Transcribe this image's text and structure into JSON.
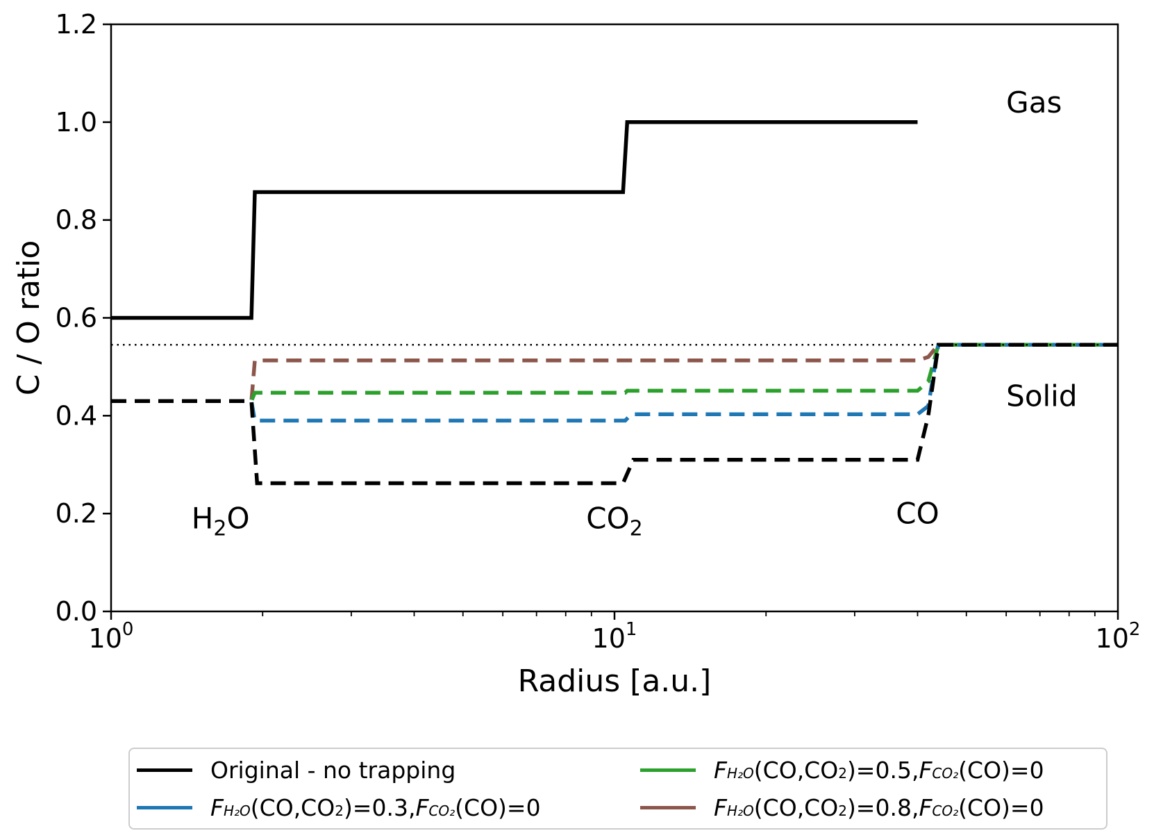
{
  "chart_data": {
    "type": "line",
    "xscale": "log",
    "xlim": [
      1,
      100
    ],
    "ylim": [
      0.0,
      1.2
    ],
    "xlabel": "Radius [a.u.]",
    "ylabel": "C / O ratio",
    "xticks": [
      {
        "value": 1,
        "base": "10",
        "exp": "0"
      },
      {
        "value": 10,
        "base": "10",
        "exp": "1"
      },
      {
        "value": 100,
        "base": "10",
        "exp": "2"
      }
    ],
    "yticks": [
      "0.0",
      "0.2",
      "0.4",
      "0.6",
      "0.8",
      "1.0",
      "1.2"
    ],
    "grid": false,
    "legend_position": "below",
    "annotations": [
      {
        "id": "gas",
        "text": "Gas",
        "x": 60,
        "y": 1.02
      },
      {
        "id": "solid",
        "text": "Solid",
        "x": 60,
        "y": 0.42
      },
      {
        "id": "h2o",
        "base": "H",
        "sub": "2",
        "tail": "O",
        "x": 1.65,
        "y": 0.17
      },
      {
        "id": "co2",
        "base": "CO",
        "sub": "2",
        "tail": "",
        "x": 10.0,
        "y": 0.17
      },
      {
        "id": "co",
        "base": "CO",
        "sub": "",
        "tail": "",
        "x": 40.0,
        "y": 0.18
      }
    ],
    "reference_line": {
      "y": 0.545,
      "style": "dotted",
      "color": "#000000"
    },
    "series": [
      {
        "key": "solid_brown",
        "color": "#8c564b",
        "style": "dashed",
        "x": [
          1,
          1.9,
          1.93,
          10.5,
          10.6,
          40,
          42,
          44,
          100
        ],
        "y": [
          0.43,
          0.43,
          0.513,
          0.513,
          0.513,
          0.513,
          0.52,
          0.545,
          0.545
        ]
      },
      {
        "key": "solid_green",
        "color": "#2ca02c",
        "style": "dashed",
        "x": [
          1,
          1.9,
          1.93,
          10.5,
          10.6,
          40,
          42,
          44,
          100
        ],
        "y": [
          0.43,
          0.43,
          0.447,
          0.447,
          0.451,
          0.451,
          0.47,
          0.545,
          0.545
        ]
      },
      {
        "key": "solid_blue",
        "color": "#1f77b4",
        "style": "dashed",
        "x": [
          1,
          1.9,
          1.93,
          10.5,
          10.8,
          40,
          42,
          44,
          100
        ],
        "y": [
          0.43,
          0.43,
          0.39,
          0.39,
          0.403,
          0.403,
          0.42,
          0.545,
          0.545
        ]
      },
      {
        "key": "solid_original",
        "color": "#000000",
        "style": "dashed",
        "x": [
          1,
          1.9,
          1.95,
          10.4,
          10.9,
          40,
          42,
          44,
          100
        ],
        "y": [
          0.43,
          0.43,
          0.262,
          0.262,
          0.31,
          0.31,
          0.4,
          0.545,
          0.545
        ]
      },
      {
        "key": "gas_original",
        "color": "#000000",
        "style": "solid",
        "x": [
          1,
          1.9,
          1.93,
          10.4,
          10.6,
          40
        ],
        "y": [
          0.6,
          0.6,
          0.857,
          0.857,
          1.0,
          1.0
        ]
      }
    ],
    "legend": [
      {
        "key": "original",
        "color": "#000000",
        "text": "Original - no trapping"
      },
      {
        "key": "f03",
        "color": "#1f77b4",
        "value": "0.3"
      },
      {
        "key": "f05",
        "color": "#2ca02c",
        "value": "0.5"
      },
      {
        "key": "f08",
        "color": "#8c564b",
        "value": "0.8"
      }
    ],
    "legend_text_parts": {
      "F": "F",
      "h2o_sub": "H₂O",
      "co2_sub": "CO₂",
      "paren_open": "(CO,CO",
      "two": "2",
      "paren_close_eq": ")=",
      "sep": ", ",
      "co_tail": "(CO)=0"
    }
  }
}
